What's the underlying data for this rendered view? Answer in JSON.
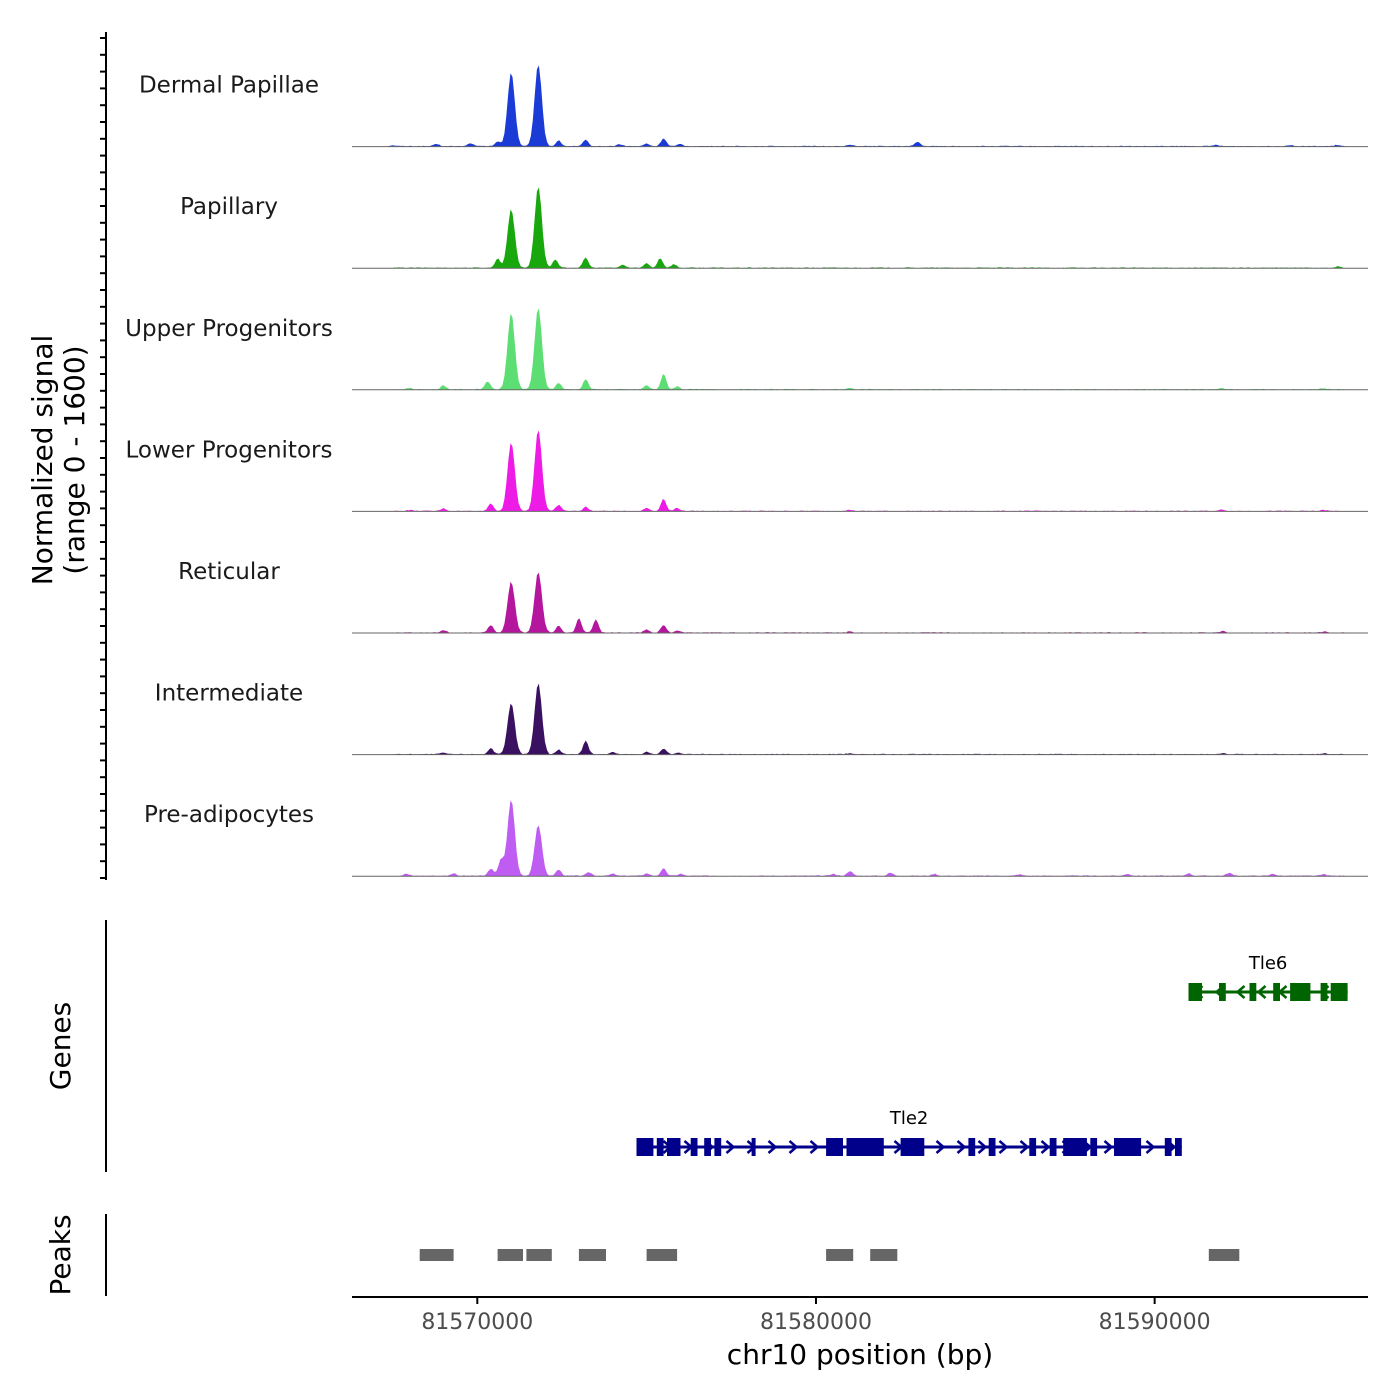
{
  "chart_data": {
    "type": "area",
    "genomic_region": {
      "chromosome": "chr10",
      "start": 81566300,
      "end": 81596300
    },
    "signal_y_label_line1": "Normalized signal",
    "signal_y_label_line2": "(range 0 - 1600)",
    "signal_range": [
      0,
      1600
    ],
    "x_label": "chr10 position (bp)",
    "x_ticks": [
      {
        "value": 81570000,
        "label": "81570000"
      },
      {
        "value": 81580000,
        "label": "81580000"
      },
      {
        "value": 81590000,
        "label": "81590000"
      }
    ],
    "series": [
      {
        "name": "Dermal Papillae",
        "color": "#1a3bd6",
        "peaks": [
          [
            81567500,
            25
          ],
          [
            81568800,
            40
          ],
          [
            81569800,
            60
          ],
          [
            81570600,
            90
          ],
          [
            81571000,
            1450
          ],
          [
            81571800,
            1600
          ],
          [
            81572400,
            110
          ],
          [
            81573200,
            120
          ],
          [
            81574200,
            40
          ],
          [
            81575000,
            50
          ],
          [
            81575500,
            155
          ],
          [
            81576000,
            40
          ],
          [
            81581000,
            25
          ],
          [
            81583000,
            85
          ],
          [
            81591800,
            25
          ],
          [
            81594000,
            25
          ],
          [
            81595400,
            25
          ]
        ]
      },
      {
        "name": "Papillary",
        "color": "#18a80e",
        "peaks": [
          [
            81570600,
            180
          ],
          [
            81571000,
            1150
          ],
          [
            81571800,
            1600
          ],
          [
            81572300,
            160
          ],
          [
            81573200,
            200
          ],
          [
            81574300,
            60
          ],
          [
            81575000,
            90
          ],
          [
            81575400,
            190
          ],
          [
            81575800,
            70
          ],
          [
            81595400,
            25
          ]
        ]
      },
      {
        "name": "Upper Progenitors",
        "color": "#5cde72",
        "peaks": [
          [
            81568000,
            25
          ],
          [
            81569000,
            80
          ],
          [
            81570300,
            160
          ],
          [
            81571000,
            1500
          ],
          [
            81571800,
            1600
          ],
          [
            81572400,
            130
          ],
          [
            81573200,
            200
          ],
          [
            81575000,
            80
          ],
          [
            81575500,
            300
          ],
          [
            81575900,
            60
          ],
          [
            81581000,
            25
          ],
          [
            81592000,
            25
          ],
          [
            81595000,
            25
          ]
        ]
      },
      {
        "name": "Lower Progenitors",
        "color": "#ee1ae6",
        "peaks": [
          [
            81568000,
            20
          ],
          [
            81569000,
            50
          ],
          [
            81570400,
            150
          ],
          [
            81571000,
            1350
          ],
          [
            81571800,
            1600
          ],
          [
            81572400,
            120
          ],
          [
            81573200,
            80
          ],
          [
            81575000,
            60
          ],
          [
            81575500,
            240
          ],
          [
            81575900,
            60
          ],
          [
            81581000,
            25
          ],
          [
            81592000,
            30
          ],
          [
            81595000,
            20
          ]
        ]
      },
      {
        "name": "Reticular",
        "color": "#b4169d",
        "peaks": [
          [
            81569000,
            50
          ],
          [
            81570400,
            150
          ],
          [
            81571000,
            1000
          ],
          [
            81571800,
            1200
          ],
          [
            81572400,
            140
          ],
          [
            81573000,
            280
          ],
          [
            81573500,
            260
          ],
          [
            81575000,
            60
          ],
          [
            81575500,
            150
          ],
          [
            81575900,
            40
          ],
          [
            81581000,
            20
          ],
          [
            81592000,
            30
          ],
          [
            81595000,
            20
          ]
        ]
      },
      {
        "name": "Intermediate",
        "color": "#3a1160",
        "peaks": [
          [
            81569000,
            30
          ],
          [
            81570400,
            120
          ],
          [
            81571000,
            1000
          ],
          [
            81571800,
            1400
          ],
          [
            81572400,
            90
          ],
          [
            81573200,
            270
          ],
          [
            81574000,
            40
          ],
          [
            81575000,
            50
          ],
          [
            81575500,
            110
          ],
          [
            81575900,
            30
          ],
          [
            81581000,
            20
          ],
          [
            81592000,
            20
          ],
          [
            81595000,
            20
          ]
        ]
      },
      {
        "name": "Pre-adipocytes",
        "color": "#bf5cf2",
        "peaks": [
          [
            81567900,
            40
          ],
          [
            81569300,
            50
          ],
          [
            81570400,
            140
          ],
          [
            81570700,
            320
          ],
          [
            81571000,
            1500
          ],
          [
            81571800,
            1000
          ],
          [
            81572400,
            120
          ],
          [
            81573300,
            70
          ],
          [
            81574000,
            40
          ],
          [
            81575000,
            50
          ],
          [
            81575500,
            140
          ],
          [
            81576000,
            40
          ],
          [
            81580500,
            40
          ],
          [
            81581000,
            95
          ],
          [
            81582200,
            60
          ],
          [
            81583500,
            40
          ],
          [
            81586000,
            30
          ],
          [
            81589200,
            40
          ],
          [
            81591000,
            50
          ],
          [
            81592200,
            60
          ],
          [
            81593500,
            40
          ],
          [
            81595000,
            30
          ]
        ]
      }
    ],
    "genes_track_label": "Genes",
    "genes": [
      {
        "name": "Tle6",
        "strand": "-",
        "color": "#006400",
        "start": 81591000,
        "end": 81595700,
        "exons": [
          [
            81591000,
            81591400
          ],
          [
            81591900,
            81592100
          ],
          [
            81592800,
            81593000
          ],
          [
            81593500,
            81593700
          ],
          [
            81594000,
            81594600
          ],
          [
            81594900,
            81595100
          ],
          [
            81595200,
            81595700
          ]
        ]
      },
      {
        "name": "Tle2",
        "strand": "+",
        "color": "#00008b",
        "start": 81574700,
        "end": 81590800,
        "exons": [
          [
            81574700,
            81575200
          ],
          [
            81575300,
            81575500
          ],
          [
            81575600,
            81576000
          ],
          [
            81576300,
            81576500
          ],
          [
            81576700,
            81576900
          ],
          [
            81577000,
            81577200
          ],
          [
            81578100,
            81578200
          ],
          [
            81580300,
            81580800
          ],
          [
            81580900,
            81582000
          ],
          [
            81582500,
            81583200
          ],
          [
            81584500,
            81584700
          ],
          [
            81585100,
            81585300
          ],
          [
            81586300,
            81586500
          ],
          [
            81586900,
            81587100
          ],
          [
            81587300,
            81588000
          ],
          [
            81588100,
            81588300
          ],
          [
            81588800,
            81589600
          ],
          [
            81590300,
            81590500
          ],
          [
            81590600,
            81590800
          ]
        ]
      }
    ],
    "peaks_track_label": "Peaks",
    "peak_regions": [
      [
        81568300,
        81569300
      ],
      [
        81570600,
        81571350
      ],
      [
        81571450,
        81572200
      ],
      [
        81573000,
        81573800
      ],
      [
        81575000,
        81575900
      ],
      [
        81580300,
        81581100
      ],
      [
        81581600,
        81582400
      ],
      [
        81591600,
        81592500
      ]
    ]
  }
}
